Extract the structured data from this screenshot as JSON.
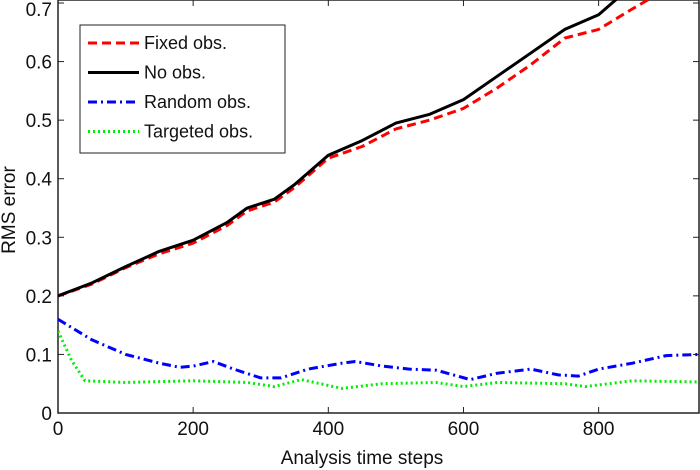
{
  "chart_data": {
    "type": "line",
    "title": "",
    "xlabel": "Analysis time steps",
    "ylabel": "RMS error",
    "xlim": [
      0,
      950
    ],
    "ylim": [
      0,
      0.7
    ],
    "xticks": [
      "0",
      "200",
      "400",
      "600",
      "800"
    ],
    "yticks": [
      "0",
      "0.1",
      "0.2",
      "0.3",
      "0.4",
      "0.5",
      "0.6",
      "0.7"
    ],
    "grid": false,
    "legend_position": "top-left",
    "series": [
      {
        "name": "Fixed obs.",
        "color": "#ff0000",
        "style": "dashed",
        "x": [
          0,
          50,
          100,
          150,
          200,
          250,
          280,
          320,
          350,
          400,
          450,
          500,
          550,
          600,
          650,
          700,
          750,
          800,
          850,
          880
        ],
        "y": [
          0.2,
          0.22,
          0.248,
          0.272,
          0.29,
          0.32,
          0.345,
          0.36,
          0.385,
          0.435,
          0.455,
          0.485,
          0.5,
          0.52,
          0.555,
          0.595,
          0.64,
          0.655,
          0.69,
          0.71
        ]
      },
      {
        "name": "No obs.",
        "color": "#000000",
        "style": "solid",
        "x": [
          0,
          50,
          100,
          150,
          200,
          250,
          280,
          320,
          350,
          400,
          450,
          500,
          550,
          600,
          650,
          700,
          750,
          800,
          830
        ],
        "y": [
          0.2,
          0.222,
          0.25,
          0.276,
          0.295,
          0.325,
          0.35,
          0.365,
          0.39,
          0.44,
          0.465,
          0.495,
          0.51,
          0.535,
          0.575,
          0.615,
          0.655,
          0.68,
          0.71
        ]
      },
      {
        "name": "Random obs.",
        "color": "#0000ff",
        "style": "dashdot",
        "x": [
          0,
          50,
          100,
          150,
          180,
          200,
          230,
          260,
          300,
          330,
          370,
          420,
          440,
          480,
          520,
          560,
          610,
          650,
          700,
          740,
          770,
          800,
          850,
          900,
          950
        ],
        "y": [
          0.16,
          0.125,
          0.1,
          0.085,
          0.078,
          0.08,
          0.088,
          0.075,
          0.06,
          0.06,
          0.075,
          0.085,
          0.088,
          0.08,
          0.075,
          0.073,
          0.057,
          0.068,
          0.075,
          0.065,
          0.063,
          0.075,
          0.085,
          0.098,
          0.1
        ]
      },
      {
        "name": "Targeted obs.",
        "color": "#00ee00",
        "style": "dotted",
        "x": [
          0,
          20,
          40,
          100,
          200,
          280,
          320,
          360,
          420,
          480,
          560,
          600,
          650,
          750,
          780,
          850,
          950
        ],
        "y": [
          0.14,
          0.09,
          0.055,
          0.052,
          0.055,
          0.052,
          0.045,
          0.057,
          0.042,
          0.05,
          0.052,
          0.045,
          0.052,
          0.05,
          0.045,
          0.055,
          0.053
        ]
      }
    ]
  }
}
